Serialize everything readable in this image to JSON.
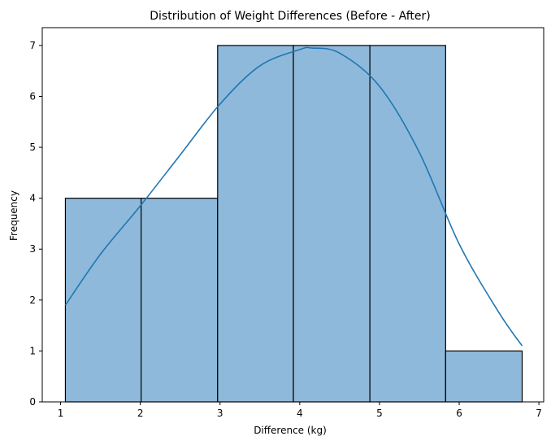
{
  "chart_data": {
    "type": "bar",
    "title": "Distribution of Weight Differences (Before - After)",
    "xlabel": "Difference (kg)",
    "ylabel": "Frequency",
    "xlim": [
      0.77,
      7.06
    ],
    "ylim": [
      0,
      7.35
    ],
    "xticks": [
      1,
      2,
      3,
      4,
      5,
      6,
      7
    ],
    "yticks": [
      0,
      1,
      2,
      3,
      4,
      5,
      6,
      7
    ],
    "bin_edges": [
      1.06,
      2.01,
      2.97,
      3.92,
      4.88,
      5.83,
      6.79
    ],
    "values": [
      4,
      4,
      7,
      7,
      7,
      1
    ],
    "kde": {
      "x": [
        1.06,
        1.5,
        2.0,
        2.5,
        3.0,
        3.5,
        4.0,
        4.15,
        4.5,
        5.0,
        5.5,
        6.0,
        6.5,
        6.79
      ],
      "y": [
        1.9,
        2.9,
        3.85,
        4.85,
        5.85,
        6.6,
        6.92,
        6.95,
        6.85,
        6.2,
        4.9,
        3.1,
        1.75,
        1.1
      ]
    },
    "grid": false,
    "colors": {
      "bar_fill": "#8fb9da",
      "bar_edge": "#000000",
      "kde_line": "#1f77b4"
    }
  }
}
